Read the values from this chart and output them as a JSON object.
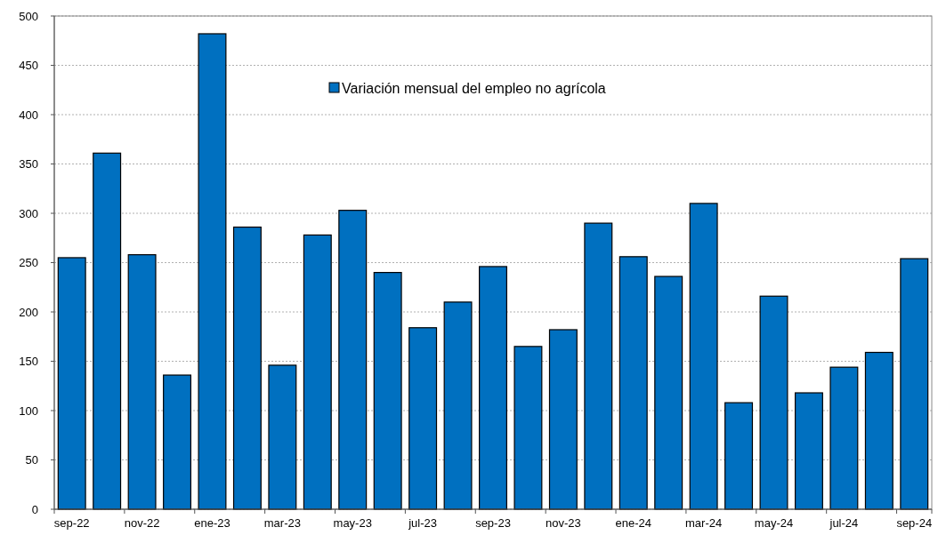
{
  "chart_data": {
    "type": "bar",
    "categories": [
      "sep-22",
      null,
      "nov-22",
      null,
      "ene-23",
      null,
      "mar-23",
      null,
      "may-23",
      null,
      "jul-23",
      null,
      "sep-23",
      null,
      "nov-23",
      null,
      "ene-24",
      null,
      "mar-24",
      null,
      "may-24",
      null,
      "jul-24",
      null,
      "sep-24"
    ],
    "series": [
      {
        "name": "Variación mensual del empleo no agrícola",
        "color": "#0070c0",
        "values": [
          255,
          361,
          258,
          136,
          482,
          286,
          146,
          278,
          303,
          240,
          184,
          210,
          246,
          165,
          182,
          290,
          256,
          236,
          310,
          108,
          216,
          118,
          144,
          159,
          254
        ]
      }
    ],
    "ylim": [
      0,
      500
    ],
    "yticks": [
      0,
      50,
      100,
      150,
      200,
      250,
      300,
      350,
      400,
      450,
      500
    ],
    "grid": "y",
    "legend": "top"
  }
}
